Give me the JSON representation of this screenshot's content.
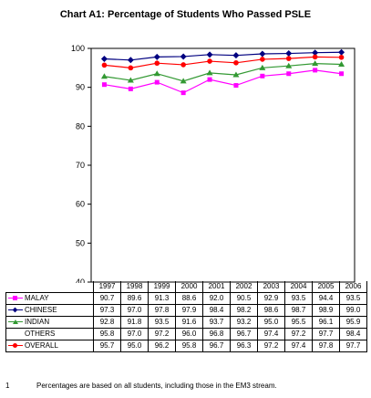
{
  "chart_data": {
    "type": "line",
    "title": "Chart A1:  Percentage of Students Who Passed PSLE",
    "xlabel": "",
    "ylabel": "",
    "ylim": [
      40,
      100
    ],
    "yticks": [
      "40",
      "50",
      "60",
      "70",
      "80",
      "90",
      "100"
    ],
    "grid": false,
    "legend": "table-below",
    "categories": [
      "1997",
      "1998",
      "1999",
      "2000",
      "2001",
      "2002",
      "2003",
      "2004",
      "2005",
      "2006"
    ],
    "series": [
      {
        "name": "MALAY",
        "color": "#ff00ff",
        "marker": "square",
        "show_line": true,
        "values": [
          90.7,
          89.6,
          91.3,
          88.6,
          92.0,
          90.5,
          92.9,
          93.5,
          94.4,
          93.5
        ],
        "labels": [
          "90.7",
          "89.6",
          "91.3",
          "88.6",
          "92.0",
          "90.5",
          "92.9",
          "93.5",
          "94.4",
          "93.5"
        ]
      },
      {
        "name": "CHINESE",
        "color": "#000080",
        "marker": "diamond",
        "show_line": true,
        "values": [
          97.3,
          97.0,
          97.8,
          97.9,
          98.4,
          98.2,
          98.6,
          98.7,
          98.9,
          99.0
        ],
        "labels": [
          "97.3",
          "97.0",
          "97.8",
          "97.9",
          "98.4",
          "98.2",
          "98.6",
          "98.7",
          "98.9",
          "99.0"
        ]
      },
      {
        "name": "INDIAN",
        "color": "#339933",
        "marker": "triangle",
        "show_line": true,
        "values": [
          92.8,
          91.8,
          93.5,
          91.6,
          93.7,
          93.2,
          95.0,
          95.5,
          96.1,
          95.9
        ],
        "labels": [
          "92.8",
          "91.8",
          "93.5",
          "91.6",
          "93.7",
          "93.2",
          "95.0",
          "95.5",
          "96.1",
          "95.9"
        ]
      },
      {
        "name": "OTHERS",
        "color": "#000000",
        "marker": "none",
        "show_line": false,
        "values": [
          95.8,
          97.0,
          97.2,
          96.0,
          96.8,
          96.7,
          97.4,
          97.2,
          97.7,
          98.4
        ],
        "labels": [
          "95.8",
          "97.0",
          "97.2",
          "96.0",
          "96.8",
          "96.7",
          "97.4",
          "97.2",
          "97.7",
          "98.4"
        ]
      },
      {
        "name": "OVERALL",
        "color": "#ff0000",
        "marker": "circle",
        "show_line": true,
        "values": [
          95.7,
          95.0,
          96.2,
          95.8,
          96.7,
          96.3,
          97.2,
          97.4,
          97.8,
          97.7
        ],
        "labels": [
          "95.7",
          "95.0",
          "96.2",
          "95.8",
          "96.7",
          "96.3",
          "97.2",
          "97.4",
          "97.8",
          "97.7"
        ]
      }
    ]
  },
  "footnote": {
    "number": "1",
    "text": "Percentages are based on all students, including those in the EM3 stream."
  }
}
